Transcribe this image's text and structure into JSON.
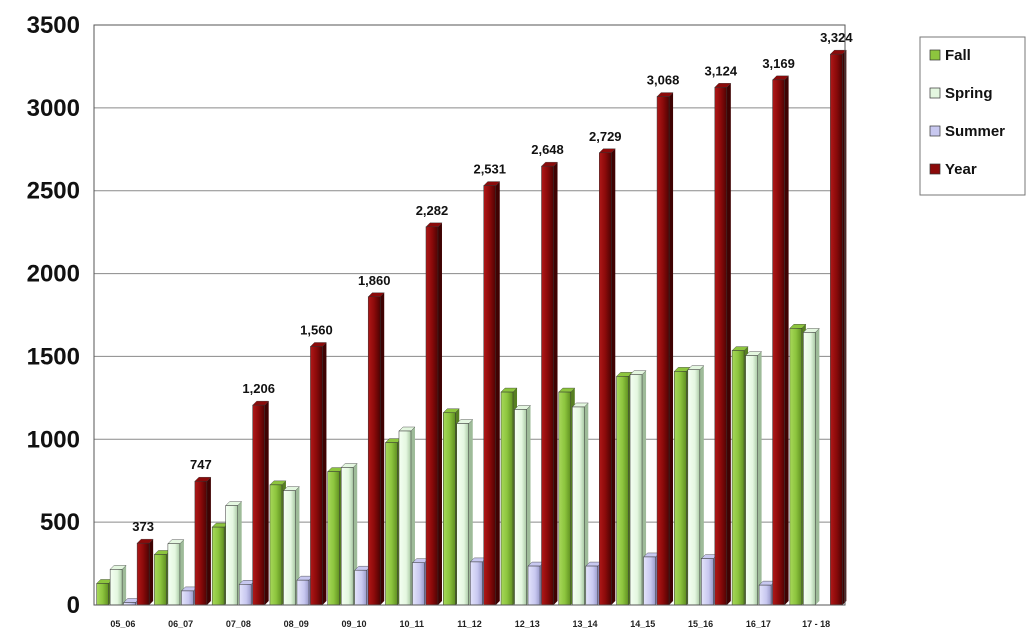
{
  "chart_data": {
    "type": "bar",
    "title": "",
    "xlabel": "",
    "ylabel": "",
    "ylim": [
      0,
      3500
    ],
    "yticks": [
      0,
      500,
      1000,
      1500,
      2000,
      2500,
      3000,
      3500
    ],
    "grid": true,
    "legend_position": "top-right",
    "categories": [
      "05_06",
      "06_07",
      "07_08",
      "08_09",
      "09_10",
      "10_11",
      "11_12",
      "12_13",
      "13_14",
      "14_15",
      "15_16",
      "16_17",
      "17 - 18"
    ],
    "series": [
      {
        "name": "Fall",
        "color": "#8dc53e",
        "values": [
          130,
          305,
          470,
          725,
          805,
          980,
          1160,
          1285,
          1285,
          1380,
          1410,
          1535,
          1670
        ]
      },
      {
        "name": "Spring",
        "color": "#e4f7e0",
        "values": [
          215,
          370,
          600,
          690,
          830,
          1050,
          1095,
          1180,
          1195,
          1390,
          1420,
          1505,
          1645
        ]
      },
      {
        "name": "Summer",
        "color": "#c8c8f0",
        "values": [
          15,
          85,
          125,
          150,
          210,
          255,
          260,
          235,
          235,
          290,
          280,
          120,
          0
        ]
      },
      {
        "name": "Year",
        "color": "#8b0a0a",
        "values": [
          373,
          747,
          1206,
          1560,
          1860,
          2282,
          2531,
          2648,
          2729,
          3068,
          3124,
          3169,
          3324
        ]
      }
    ],
    "data_labels": [
      "373",
      "747",
      "1,206",
      "1,560",
      "1,860",
      "2,282",
      "2,531",
      "2,648",
      "2,729",
      "3,068",
      "3,124",
      "3,169",
      "3,324"
    ]
  }
}
